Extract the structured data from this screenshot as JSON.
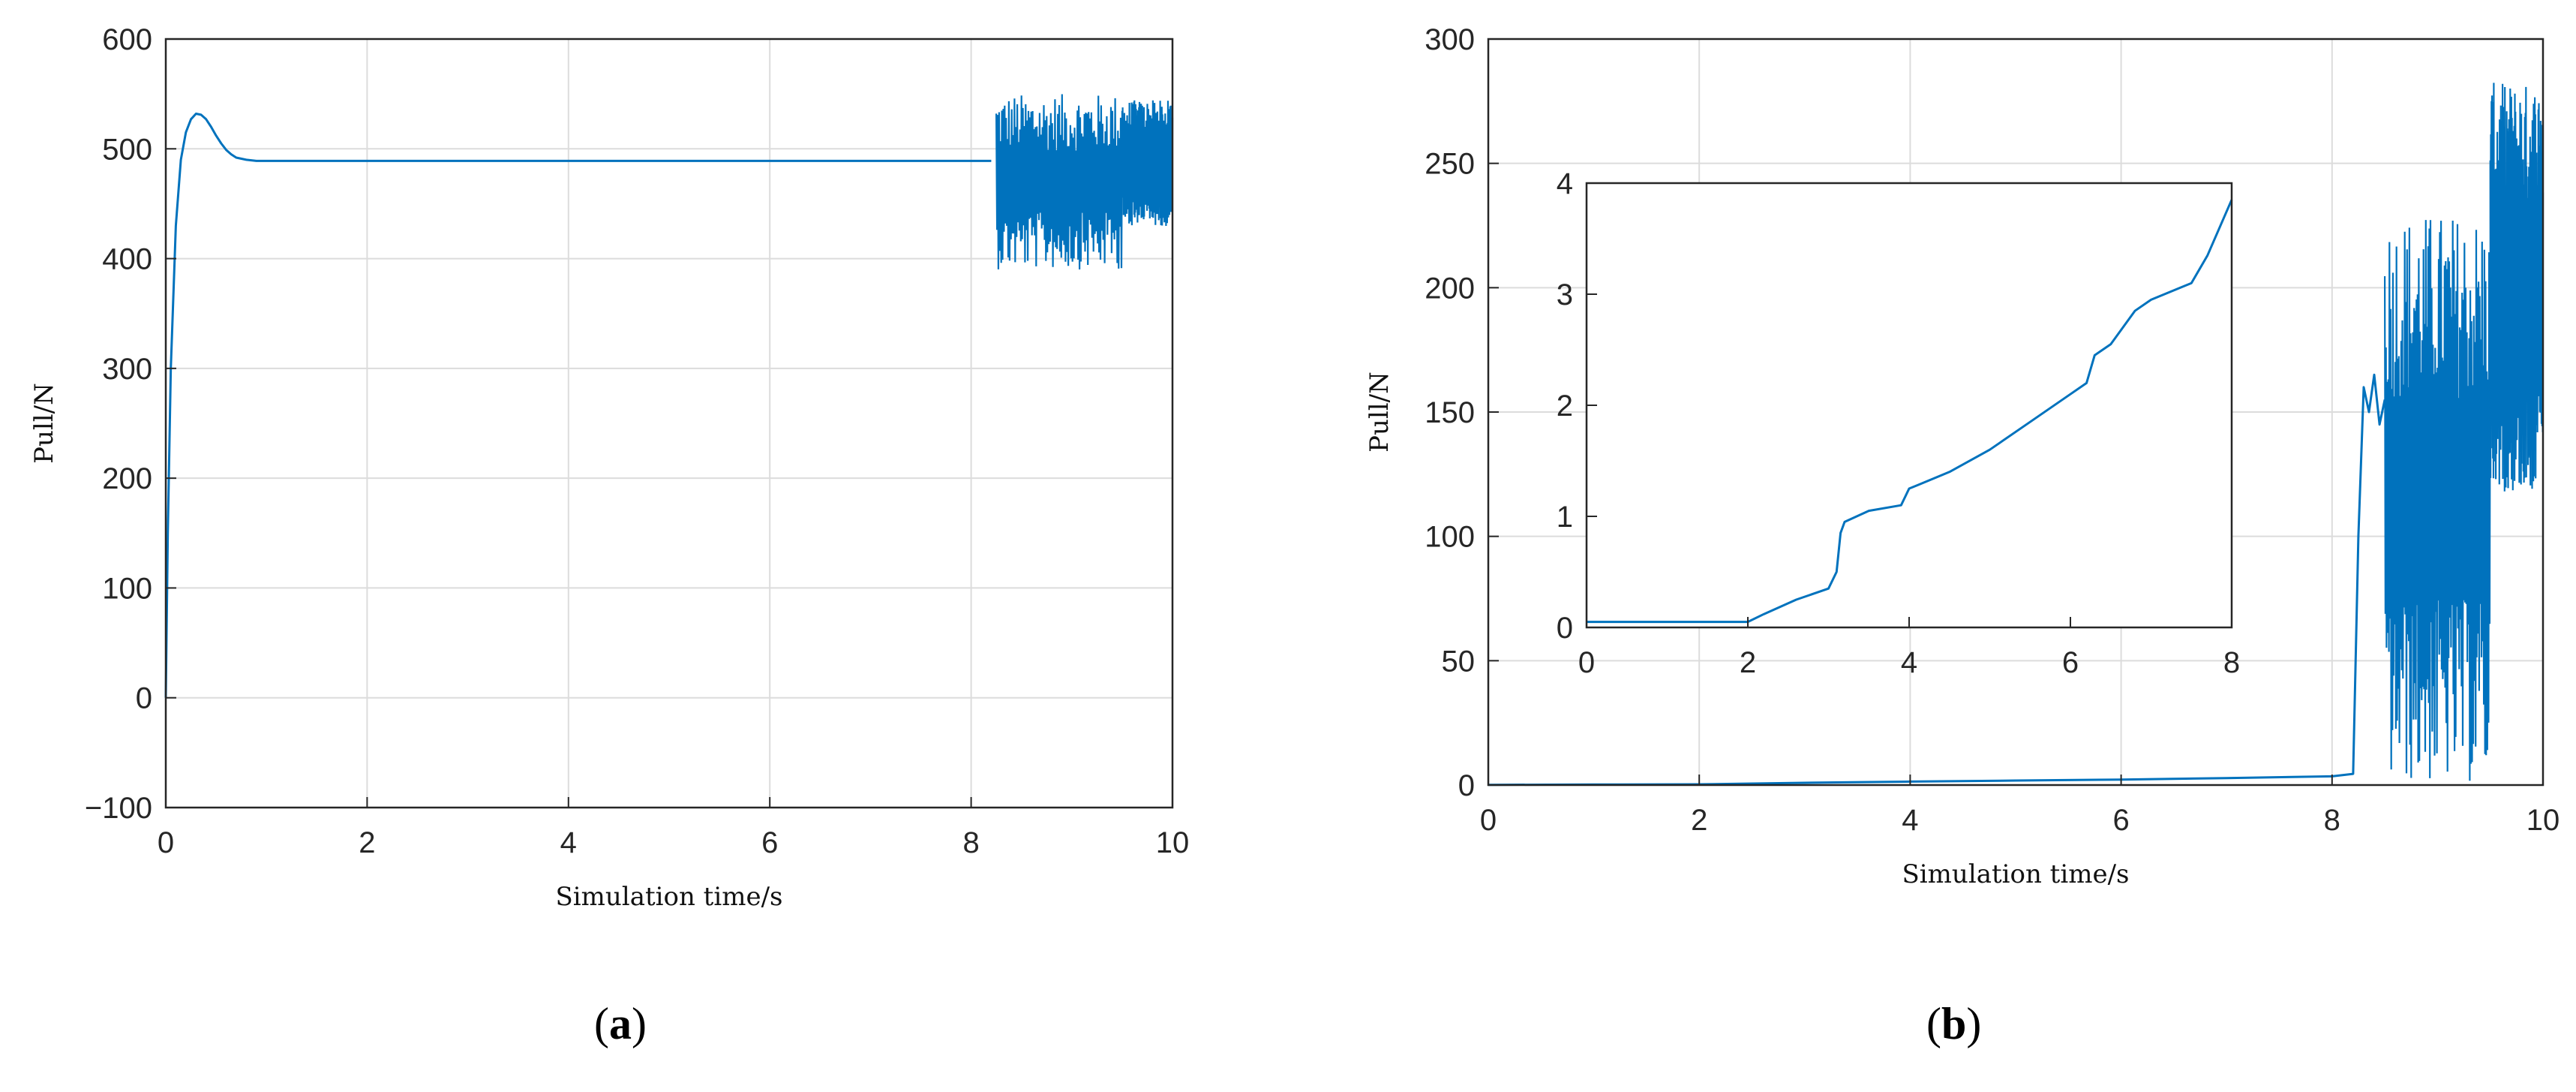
{
  "chart_data": [
    {
      "panel": "a",
      "type": "line",
      "xlabel": "Simulation time/s",
      "ylabel": "Pull/N",
      "xlim": [
        0,
        10
      ],
      "ylim": [
        -100,
        600
      ],
      "xticks": [
        "0",
        "2",
        "4",
        "6",
        "8",
        "10"
      ],
      "yticks": [
        "−100",
        "0",
        "100",
        "200",
        "300",
        "400",
        "500",
        "600"
      ],
      "grid": true,
      "line_color": "#0072BD",
      "series": [
        {
          "x": [
            0,
            0.02,
            0.05,
            0.1,
            0.15,
            0.2,
            0.25,
            0.3,
            0.35,
            0.4,
            0.45,
            0.5,
            0.55,
            0.6,
            0.65,
            0.7,
            0.8,
            0.9,
            1.0,
            1.1,
            1.2,
            1.5,
            2,
            3,
            4,
            5,
            6,
            7,
            8,
            8.2
          ],
          "y": [
            0,
            150,
            300,
            430,
            490,
            515,
            527,
            532,
            531,
            527,
            520,
            512,
            505,
            499,
            495,
            492,
            490,
            489,
            489,
            489,
            489,
            489,
            489,
            489,
            489,
            489,
            489,
            489,
            489,
            489
          ]
        }
      ],
      "noisy_segments": [
        {
          "x_start": 8.25,
          "x_end": 9.5,
          "y_min": 410,
          "y_max": 570,
          "center": 470
        },
        {
          "x_start": 9.5,
          "x_end": 10.0,
          "y_min": 430,
          "y_max": 545,
          "center": 487
        }
      ]
    },
    {
      "panel": "b",
      "type": "line",
      "xlabel": "Simulation time/s",
      "ylabel": "Pull/N",
      "xlim": [
        0,
        10
      ],
      "ylim": [
        0,
        300
      ],
      "xticks": [
        "0",
        "2",
        "4",
        "6",
        "8",
        "10"
      ],
      "yticks": [
        "0",
        "50",
        "100",
        "150",
        "200",
        "250",
        "300"
      ],
      "grid": true,
      "line_color": "#0072BD",
      "series": [
        {
          "x": [
            0,
            1,
            2,
            3,
            4,
            5,
            6,
            7,
            8,
            8.2,
            8.25,
            8.3,
            8.35,
            8.4,
            8.45,
            8.5
          ],
          "y": [
            0.1,
            0.2,
            0.3,
            0.9,
            1.4,
            1.8,
            2.2,
            2.8,
            3.5,
            4.5,
            100,
            160,
            150,
            165,
            145,
            155
          ]
        }
      ],
      "noisy_segments": [
        {
          "x_start": 8.5,
          "x_end": 9.5,
          "y_min": 0,
          "y_max": 230,
          "center": 115
        },
        {
          "x_start": 9.5,
          "x_end": 10.0,
          "y_min": 120,
          "y_max": 285,
          "center": 200
        }
      ],
      "inset": {
        "type": "line",
        "xlim": [
          0,
          8
        ],
        "ylim": [
          0,
          4
        ],
        "xticks": [
          "0",
          "2",
          "4",
          "6",
          "8"
        ],
        "yticks": [
          "0",
          "1",
          "2",
          "3",
          "4"
        ],
        "series": [
          {
            "x": [
              0,
              2,
              2.2,
              2.6,
              3.0,
              3.1,
              3.15,
              3.2,
              3.5,
              3.9,
              4.0,
              4.1,
              4.5,
              5.0,
              5.5,
              6.0,
              6.2,
              6.3,
              6.5,
              6.8,
              7.0,
              7.5,
              7.7,
              8.0
            ],
            "y": [
              0.05,
              0.05,
              0.12,
              0.25,
              0.35,
              0.5,
              0.85,
              0.95,
              1.05,
              1.1,
              1.25,
              1.28,
              1.4,
              1.6,
              1.85,
              2.1,
              2.2,
              2.45,
              2.55,
              2.85,
              2.95,
              3.1,
              3.35,
              3.85
            ]
          }
        ]
      }
    }
  ],
  "captions": {
    "a": "a",
    "b": "b"
  }
}
